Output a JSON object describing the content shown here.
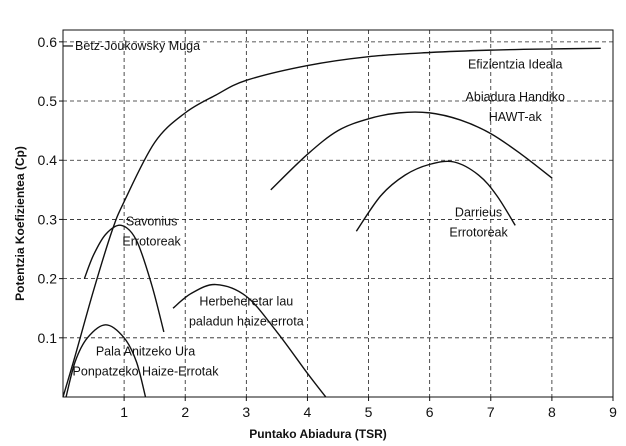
{
  "chart_data": {
    "type": "line",
    "xlabel": "Puntako Abiadura (TSR)",
    "ylabel": "Potentzia Koefizientea (Cp)",
    "xlim": [
      0,
      9
    ],
    "ylim": [
      0,
      0.62
    ],
    "x_ticks": [
      "1",
      "2",
      "3",
      "4",
      "5",
      "6",
      "7",
      "8",
      "9"
    ],
    "y_ticks": [
      "0.1",
      "0.2",
      "0.3",
      "0.4",
      "0.5",
      "0.6"
    ],
    "grid": "dashed",
    "reference_line": {
      "label": "Betz-Joukowsky Muga",
      "y": 0.593
    },
    "series": [
      {
        "label": "Efizientzia Ideala",
        "points": [
          [
            0,
            0
          ],
          [
            0.2,
            0.07
          ],
          [
            0.5,
            0.18
          ],
          [
            0.8,
            0.28
          ],
          [
            1.0,
            0.33
          ],
          [
            1.5,
            0.43
          ],
          [
            2.0,
            0.48
          ],
          [
            2.5,
            0.51
          ],
          [
            3.0,
            0.535
          ],
          [
            4.0,
            0.56
          ],
          [
            5.0,
            0.575
          ],
          [
            6.0,
            0.582
          ],
          [
            7.0,
            0.586
          ],
          [
            8.0,
            0.588
          ],
          [
            8.8,
            0.589
          ]
        ]
      },
      {
        "label": [
          "Savonius",
          "Errotoreak"
        ],
        "points": [
          [
            0.35,
            0.2
          ],
          [
            0.5,
            0.24
          ],
          [
            0.7,
            0.275
          ],
          [
            0.95,
            0.29
          ],
          [
            1.2,
            0.265
          ],
          [
            1.45,
            0.19
          ],
          [
            1.65,
            0.11
          ]
        ]
      },
      {
        "label": [
          "Pala Anitzeko Ura",
          "Ponpatzeko Haize-Errotak"
        ],
        "points": [
          [
            0.05,
            0
          ],
          [
            0.2,
            0.06
          ],
          [
            0.4,
            0.1
          ],
          [
            0.7,
            0.122
          ],
          [
            1.0,
            0.1
          ],
          [
            1.2,
            0.06
          ],
          [
            1.35,
            0
          ]
        ]
      },
      {
        "label": [
          "Herbeheretar lau",
          "paladun haize-errota"
        ],
        "points": [
          [
            1.8,
            0.15
          ],
          [
            2.1,
            0.175
          ],
          [
            2.5,
            0.19
          ],
          [
            3.0,
            0.17
          ],
          [
            3.5,
            0.11
          ],
          [
            4.0,
            0.04
          ],
          [
            4.3,
            0
          ]
        ]
      },
      {
        "label": [
          "Abiadura Handiko",
          "HAWT-ak"
        ],
        "points": [
          [
            3.4,
            0.35
          ],
          [
            4.0,
            0.41
          ],
          [
            4.5,
            0.45
          ],
          [
            5.0,
            0.47
          ],
          [
            5.5,
            0.48
          ],
          [
            6.0,
            0.48
          ],
          [
            6.5,
            0.468
          ],
          [
            7.0,
            0.445
          ],
          [
            7.5,
            0.41
          ],
          [
            8.0,
            0.37
          ]
        ]
      },
      {
        "label": [
          "Darrieus",
          "Errotoreak"
        ],
        "points": [
          [
            4.8,
            0.28
          ],
          [
            5.2,
            0.34
          ],
          [
            5.6,
            0.375
          ],
          [
            6.0,
            0.393
          ],
          [
            6.4,
            0.397
          ],
          [
            6.8,
            0.375
          ],
          [
            7.1,
            0.34
          ],
          [
            7.4,
            0.29
          ]
        ]
      }
    ]
  }
}
